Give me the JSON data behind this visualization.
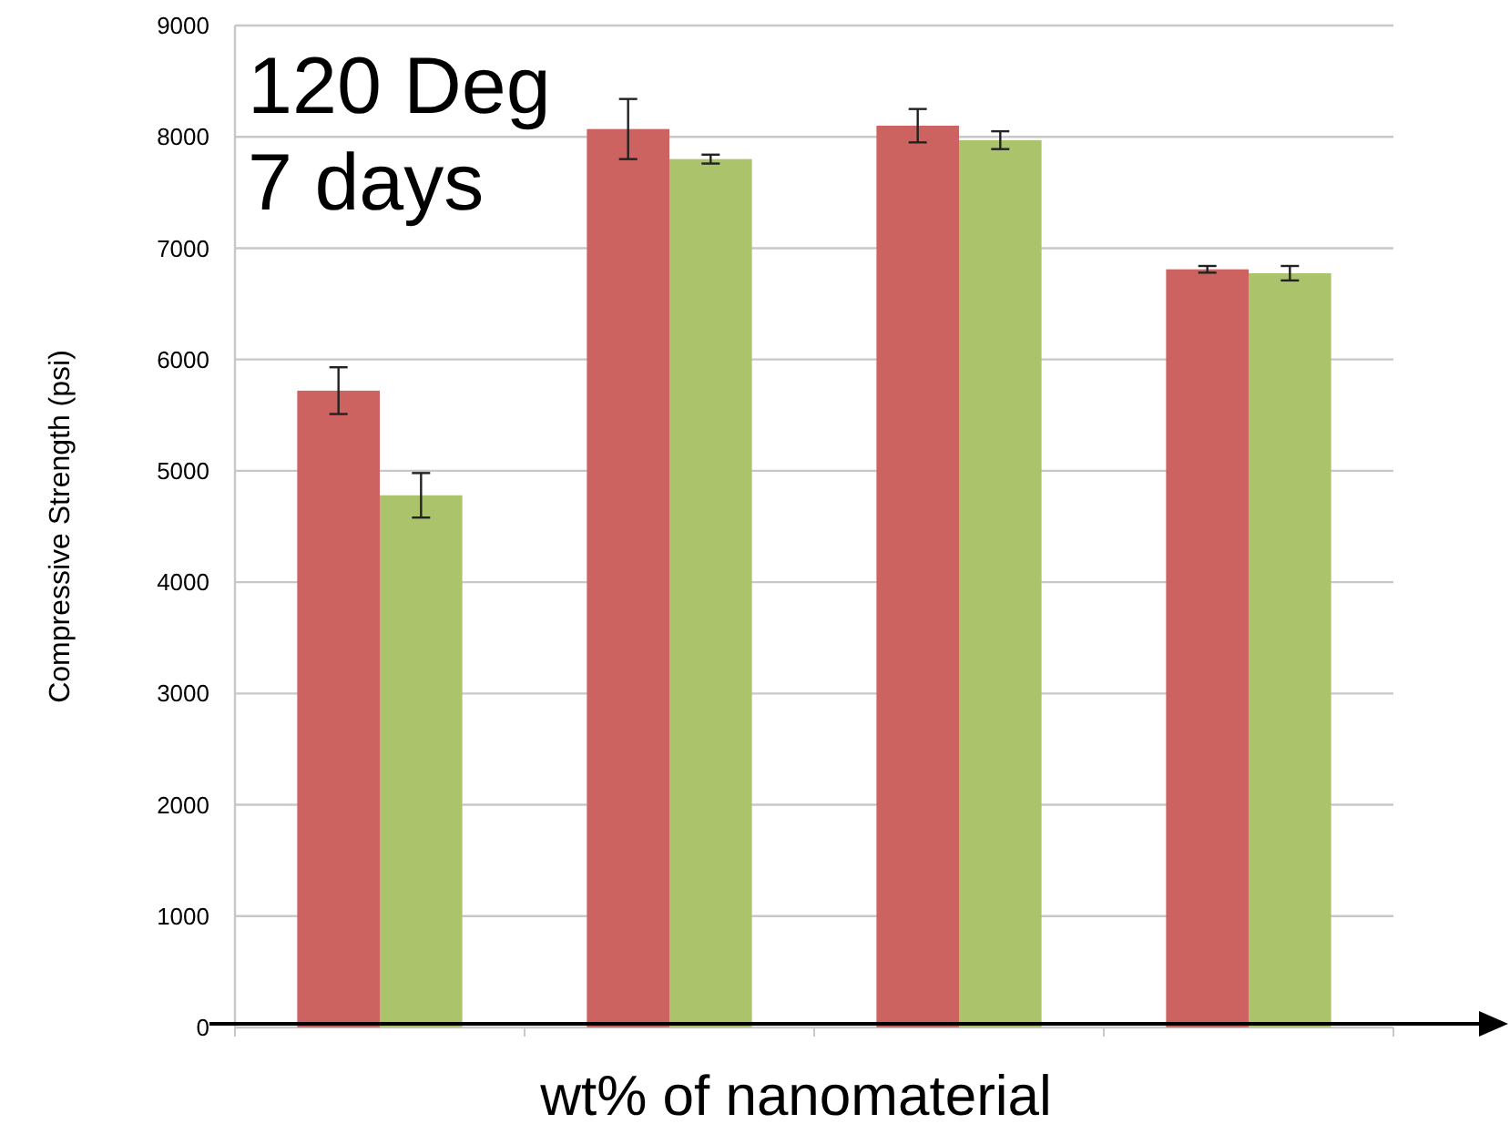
{
  "chart_data": {
    "type": "bar",
    "xlabel": "wt% of nanomaterial",
    "ylabel": "Compressive Strength (psi)",
    "annotations": [
      "120 Deg",
      "7 days"
    ],
    "categories": [
      null,
      null,
      null,
      null
    ],
    "series": [
      {
        "color": "#cd6360",
        "values": [
          5720,
          8070,
          8100,
          6810
        ],
        "errors": [
          210,
          270,
          150,
          30
        ]
      },
      {
        "color": "#abc46b",
        "values": [
          4780,
          7800,
          7970,
          6775
        ],
        "errors": [
          200,
          40,
          80,
          65
        ]
      }
    ],
    "ylim": [
      0,
      9000
    ],
    "yticks": [
      0,
      1000,
      2000,
      3000,
      4000,
      5000,
      6000,
      7000,
      8000,
      9000
    ],
    "grid": "y"
  }
}
